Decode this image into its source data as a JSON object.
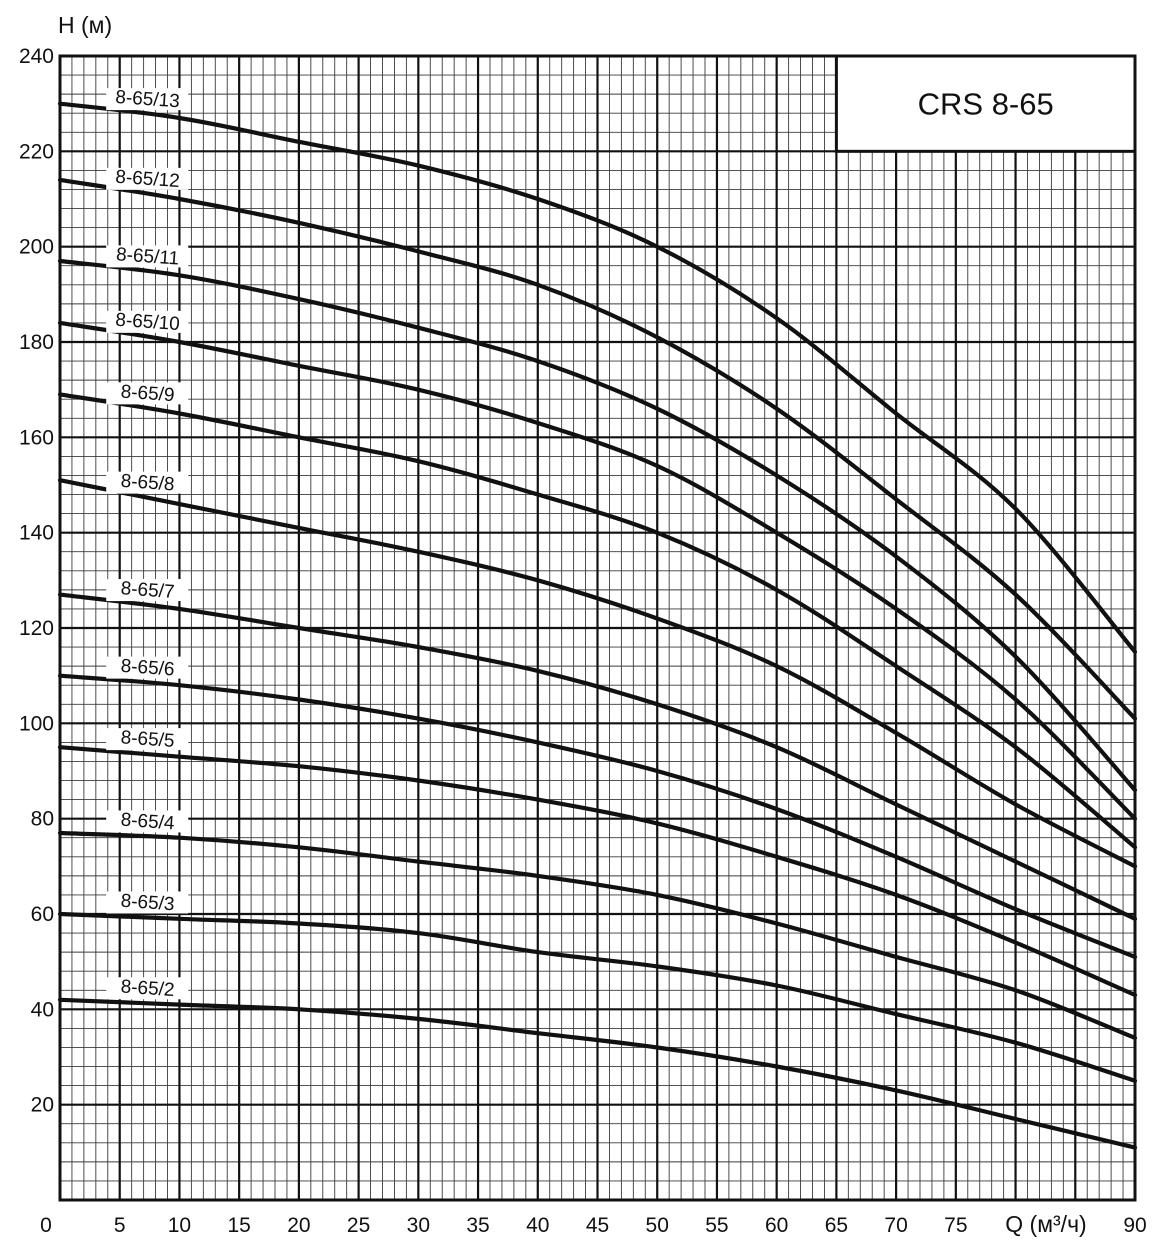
{
  "chart_data": {
    "type": "line",
    "title": "CRS 8-65",
    "xlabel": "Q (м³/ч)",
    "ylabel": "H (м)",
    "xlim": [
      0,
      90
    ],
    "ylim": [
      0,
      240
    ],
    "xticks": [
      0,
      5,
      10,
      15,
      20,
      25,
      30,
      35,
      40,
      45,
      50,
      55,
      60,
      65,
      70,
      75,
      90
    ],
    "yticks": [
      20,
      40,
      60,
      80,
      100,
      120,
      140,
      160,
      180,
      200,
      220,
      240
    ],
    "grid": true,
    "legend": "none",
    "x": [
      0,
      10,
      20,
      30,
      40,
      50,
      60,
      70,
      80,
      90
    ],
    "series": [
      {
        "name": "8-65/13",
        "values": [
          230,
          227,
          222,
          217,
          210,
          200,
          185,
          165,
          145,
          115
        ]
      },
      {
        "name": "8-65/12",
        "values": [
          214,
          210,
          205,
          199,
          192,
          181,
          166,
          147,
          127,
          101
        ]
      },
      {
        "name": "8-65/11",
        "values": [
          197,
          194,
          189,
          183,
          176,
          166,
          152,
          135,
          114,
          86
        ]
      },
      {
        "name": "8-65/10",
        "values": [
          184,
          180,
          175,
          170,
          163,
          154,
          140,
          124,
          105,
          80
        ]
      },
      {
        "name": "8-65/9",
        "values": [
          169,
          165,
          160,
          155,
          148,
          140,
          128,
          112,
          95,
          74
        ]
      },
      {
        "name": "8-65/8",
        "values": [
          151,
          146,
          141,
          136,
          130,
          122,
          112,
          98,
          83,
          70
        ]
      },
      {
        "name": "8-65/7",
        "values": [
          127,
          124,
          120,
          116,
          111,
          104,
          95,
          83,
          71,
          59
        ]
      },
      {
        "name": "8-65/6",
        "values": [
          110,
          108,
          105,
          101,
          96,
          90,
          82,
          72,
          61,
          51
        ]
      },
      {
        "name": "8-65/5",
        "values": [
          95,
          93,
          91,
          88,
          84,
          79,
          72,
          64,
          54,
          43
        ]
      },
      {
        "name": "8-65/4",
        "values": [
          77,
          76,
          74,
          71,
          68,
          64,
          58,
          51,
          44,
          34
        ]
      },
      {
        "name": "8-65/3",
        "values": [
          60,
          59,
          58,
          56,
          52,
          49,
          45,
          39,
          33,
          25
        ]
      },
      {
        "name": "8-65/2",
        "values": [
          42,
          41,
          40,
          38,
          35,
          32,
          28,
          23,
          17,
          11
        ]
      }
    ]
  }
}
